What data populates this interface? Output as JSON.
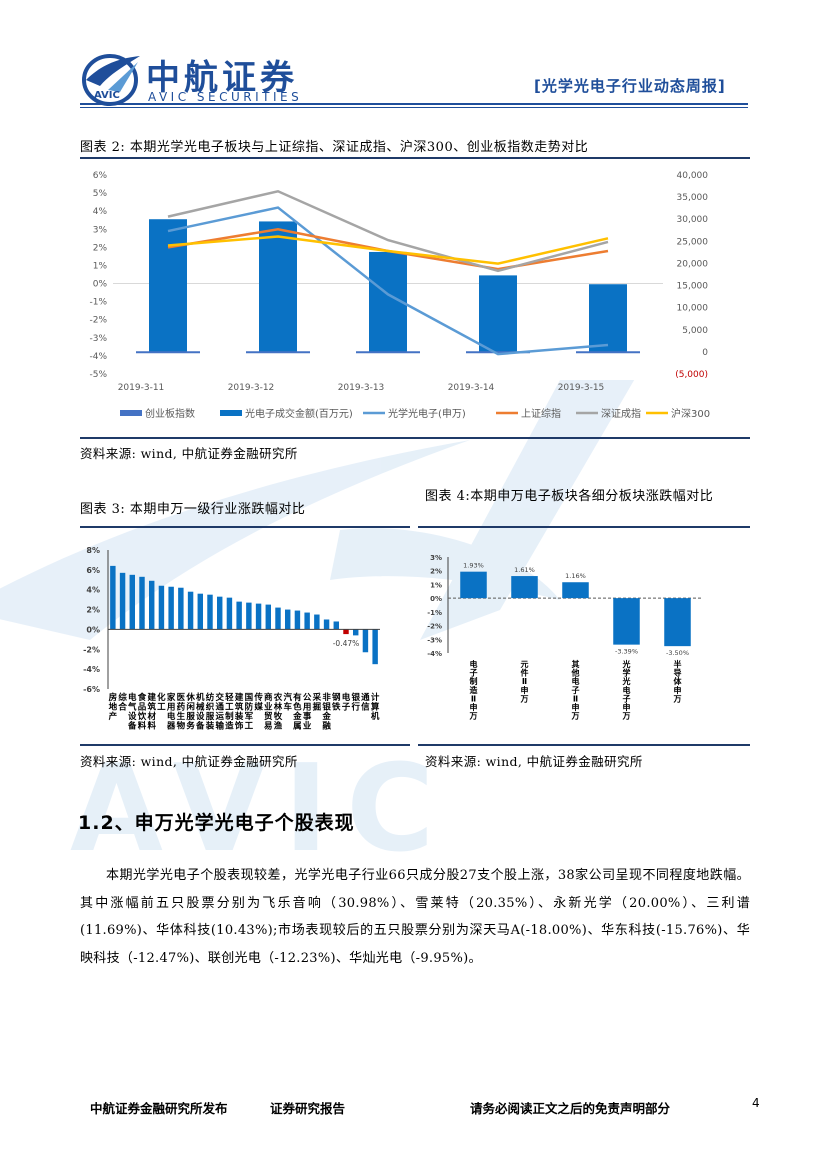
{
  "header": {
    "brand_cn": "中航证券",
    "brand_en": "AVIC SECURITIES",
    "logo_text": "AVIC",
    "report_tag": "[光学光电子行业动态周报]"
  },
  "watermark_text": "AVIC",
  "colors": {
    "brand_blue": "#1f4e9a",
    "bar_blue": "#0a72c4",
    "chart_dark_blue": "#4472c4",
    "chart_light_blue": "#5b9bd5",
    "orange": "#ed7d31",
    "gray": "#a5a5a5",
    "yellow": "#ffc000",
    "red": "#c00000",
    "rule": "#1f3a68"
  },
  "figure2": {
    "title": "图表 2: 本期光学光电子板块与上证综指、深证成指、沪深300、创业板指数走势对比",
    "source": "资料来源: wind, 中航证券金融研究所"
  },
  "figure3": {
    "title": "图表 3: 本期申万一级行业涨跌幅对比",
    "source": "资料来源: wind, 中航证券金融研究所"
  },
  "figure4": {
    "title": "图表 4:本期申万电子板块各细分板块涨跌幅对比",
    "source": "资料来源: wind, 中航证券金融研究所"
  },
  "section": {
    "heading": "1.2、申万光学光电子个股表现",
    "paragraph": "本期光学光电子个股表现较差，光学光电子行业66只成分股27支个股上涨，38家公司呈现不同程度地跌幅。其中涨幅前五只股票分别为飞乐音响（30.98%）、雪莱特（20.35%）、永新光学（20.00%）、三利谱(11.69%)、华体科技(10.43%);市场表现较后的五只股票分别为深天马A(-18.00%)、华东科技(-15.76%)、华映科技（-12.47%)、联创光电（-12.23%)、华灿光电（-9.95%)。"
  },
  "footer": {
    "left": "中航证券金融研究所发布",
    "middle": "证券研究报告",
    "right": "请务必阅读正文之后的免责声明部分",
    "page_number": "4"
  },
  "chart_data": [
    {
      "type": "bar+line",
      "categories": [
        "2019-3-11",
        "2019-3-12",
        "2019-3-13",
        "2019-3-14",
        "2019-3-15"
      ],
      "left_axis": {
        "ticks": [
          "6%",
          "5%",
          "4%",
          "3%",
          "2%",
          "1%",
          "0%",
          "-1%",
          "-2%",
          "-3%",
          "-4%",
          "-5%"
        ],
        "ylim": [
          -5,
          6
        ]
      },
      "right_axis": {
        "ticks": [
          "40,000",
          "35,000",
          "30,000",
          "25,000",
          "20,000",
          "15,000",
          "10,000",
          "5,000",
          "0",
          "(5,000)"
        ],
        "ylim": [
          -5000,
          40000
        ]
      },
      "series": [
        {
          "name": "创业板指数",
          "kind": "bar",
          "axis": "left",
          "values": [
            -3.8,
            -3.8,
            -3.8,
            -3.8,
            -3.8
          ]
        },
        {
          "name": "光电子成交金额(百万元)",
          "kind": "bar",
          "axis": "right",
          "values": [
            30000,
            29500,
            22600,
            17300,
            15300
          ]
        },
        {
          "name": "光学光电子(申万)",
          "kind": "line",
          "axis": "left",
          "values": [
            2.9,
            4.2,
            -0.6,
            -3.9,
            -3.4
          ]
        },
        {
          "name": "上证综指",
          "kind": "line",
          "axis": "left",
          "values": [
            2.0,
            3.0,
            1.8,
            0.8,
            1.8
          ]
        },
        {
          "name": "深证成指",
          "kind": "line",
          "axis": "left",
          "values": [
            3.7,
            5.1,
            2.4,
            0.7,
            2.3
          ]
        },
        {
          "name": "沪深300",
          "kind": "line",
          "axis": "left",
          "values": [
            2.1,
            2.6,
            1.8,
            1.1,
            2.5
          ]
        }
      ],
      "grid": false,
      "legend": "bottom"
    },
    {
      "type": "bar",
      "categories": [
        "房地产",
        "综合",
        "电气设备",
        "食品饮料",
        "建筑材料",
        "化工",
        "家用电器",
        "医药生物",
        "休闲服务",
        "机械设备",
        "纺织服装",
        "交通运输",
        "轻工制造",
        "建筑装饰",
        "国防军工",
        "传媒",
        "商业贸易",
        "农林牧渔",
        "汽车",
        "有色金属",
        "公用事业",
        "采掘",
        "非银金融",
        "钢铁",
        "电子",
        "银行",
        "通信",
        "计算机"
      ],
      "values": [
        6.4,
        5.7,
        5.5,
        5.3,
        4.9,
        4.4,
        4.3,
        4.2,
        3.8,
        3.6,
        3.5,
        3.3,
        3.2,
        2.8,
        2.7,
        2.6,
        2.5,
        2.2,
        2.0,
        1.9,
        1.7,
        1.5,
        1.0,
        0.8,
        -0.47,
        -0.6,
        -2.3,
        -3.5
      ],
      "highlight": "电子",
      "data_labels": [
        {
          "category": "电子",
          "label": "-0.47%"
        }
      ],
      "ylim": [
        -6,
        8
      ],
      "y_ticks": [
        "8%",
        "6%",
        "4%",
        "2%",
        "0%",
        "-2%",
        "-4%",
        "-6%"
      ]
    },
    {
      "type": "bar",
      "categories": [
        "电子制造Ⅱ(申万)",
        "元件Ⅱ(申万)",
        "其他电子Ⅱ(申万)",
        "光学光电子(申万)",
        "半导体(申万)"
      ],
      "values": [
        1.93,
        1.61,
        1.16,
        -3.39,
        -3.5
      ],
      "data_labels": [
        "1.93%",
        "1.61%",
        "1.16%",
        "-3.39%",
        "-3.50%"
      ],
      "ylim": [
        -4,
        3
      ],
      "y_ticks": [
        "3%",
        "2%",
        "1%",
        "0%",
        "-1%",
        "-2%",
        "-3%",
        "-4%"
      ]
    }
  ]
}
